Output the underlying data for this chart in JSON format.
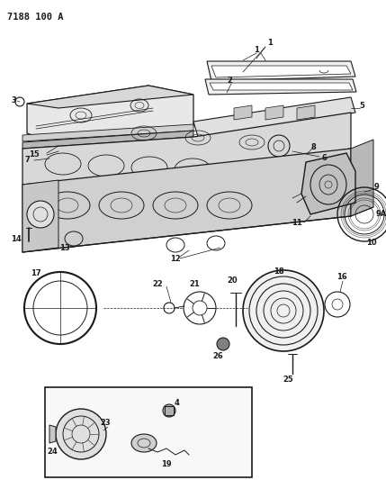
{
  "title": "7188 100 A",
  "bg_color": "#ffffff",
  "lc": "#1a1a1a",
  "figsize": [
    4.29,
    5.33
  ],
  "dpi": 100,
  "title_fontsize": 7.5,
  "label_fontsize": 6.0
}
